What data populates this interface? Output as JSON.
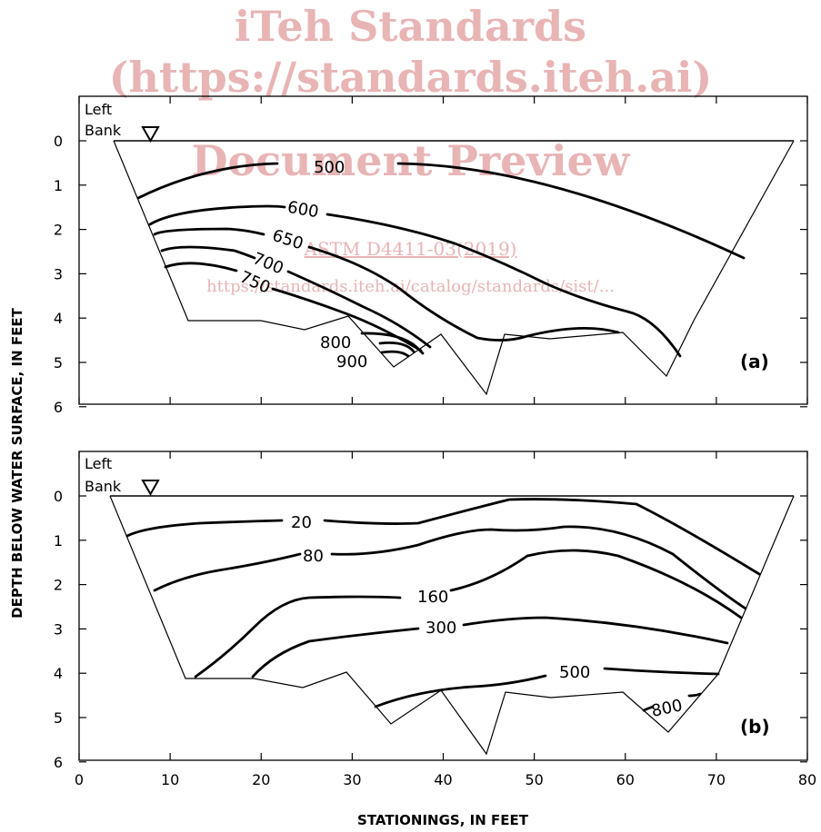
{
  "watermark": {
    "line1": "iTeh Standards",
    "line2": "(https://standards.iteh.ai)",
    "line3": "Document Preview",
    "line4": "ASTM D4411-03(2019)",
    "line5": "https://standards.iteh.ai/catalog/standards/sist/..."
  },
  "figure": {
    "y_axis_label": "DEPTH BELOW WATER SURFACE, IN FEET",
    "x_axis_label": "STATIONINGS, IN FEET",
    "x_ticks": [
      "0",
      "10",
      "20",
      "30",
      "40",
      "50",
      "60",
      "70",
      "80"
    ],
    "y_ticks": [
      "0",
      "1",
      "2",
      "3",
      "4",
      "5",
      "6"
    ],
    "panels": [
      {
        "tag": "(a)",
        "bank_label_1": "Left",
        "bank_label_2": "Bank",
        "contour_labels": [
          "500",
          "600",
          "650",
          "700",
          "750",
          "800",
          "900"
        ]
      },
      {
        "tag": "(b)",
        "bank_label_1": "Left",
        "bank_label_2": "Bank",
        "contour_labels": [
          "20",
          "80",
          "160",
          "300",
          "500",
          "800"
        ]
      }
    ]
  }
}
